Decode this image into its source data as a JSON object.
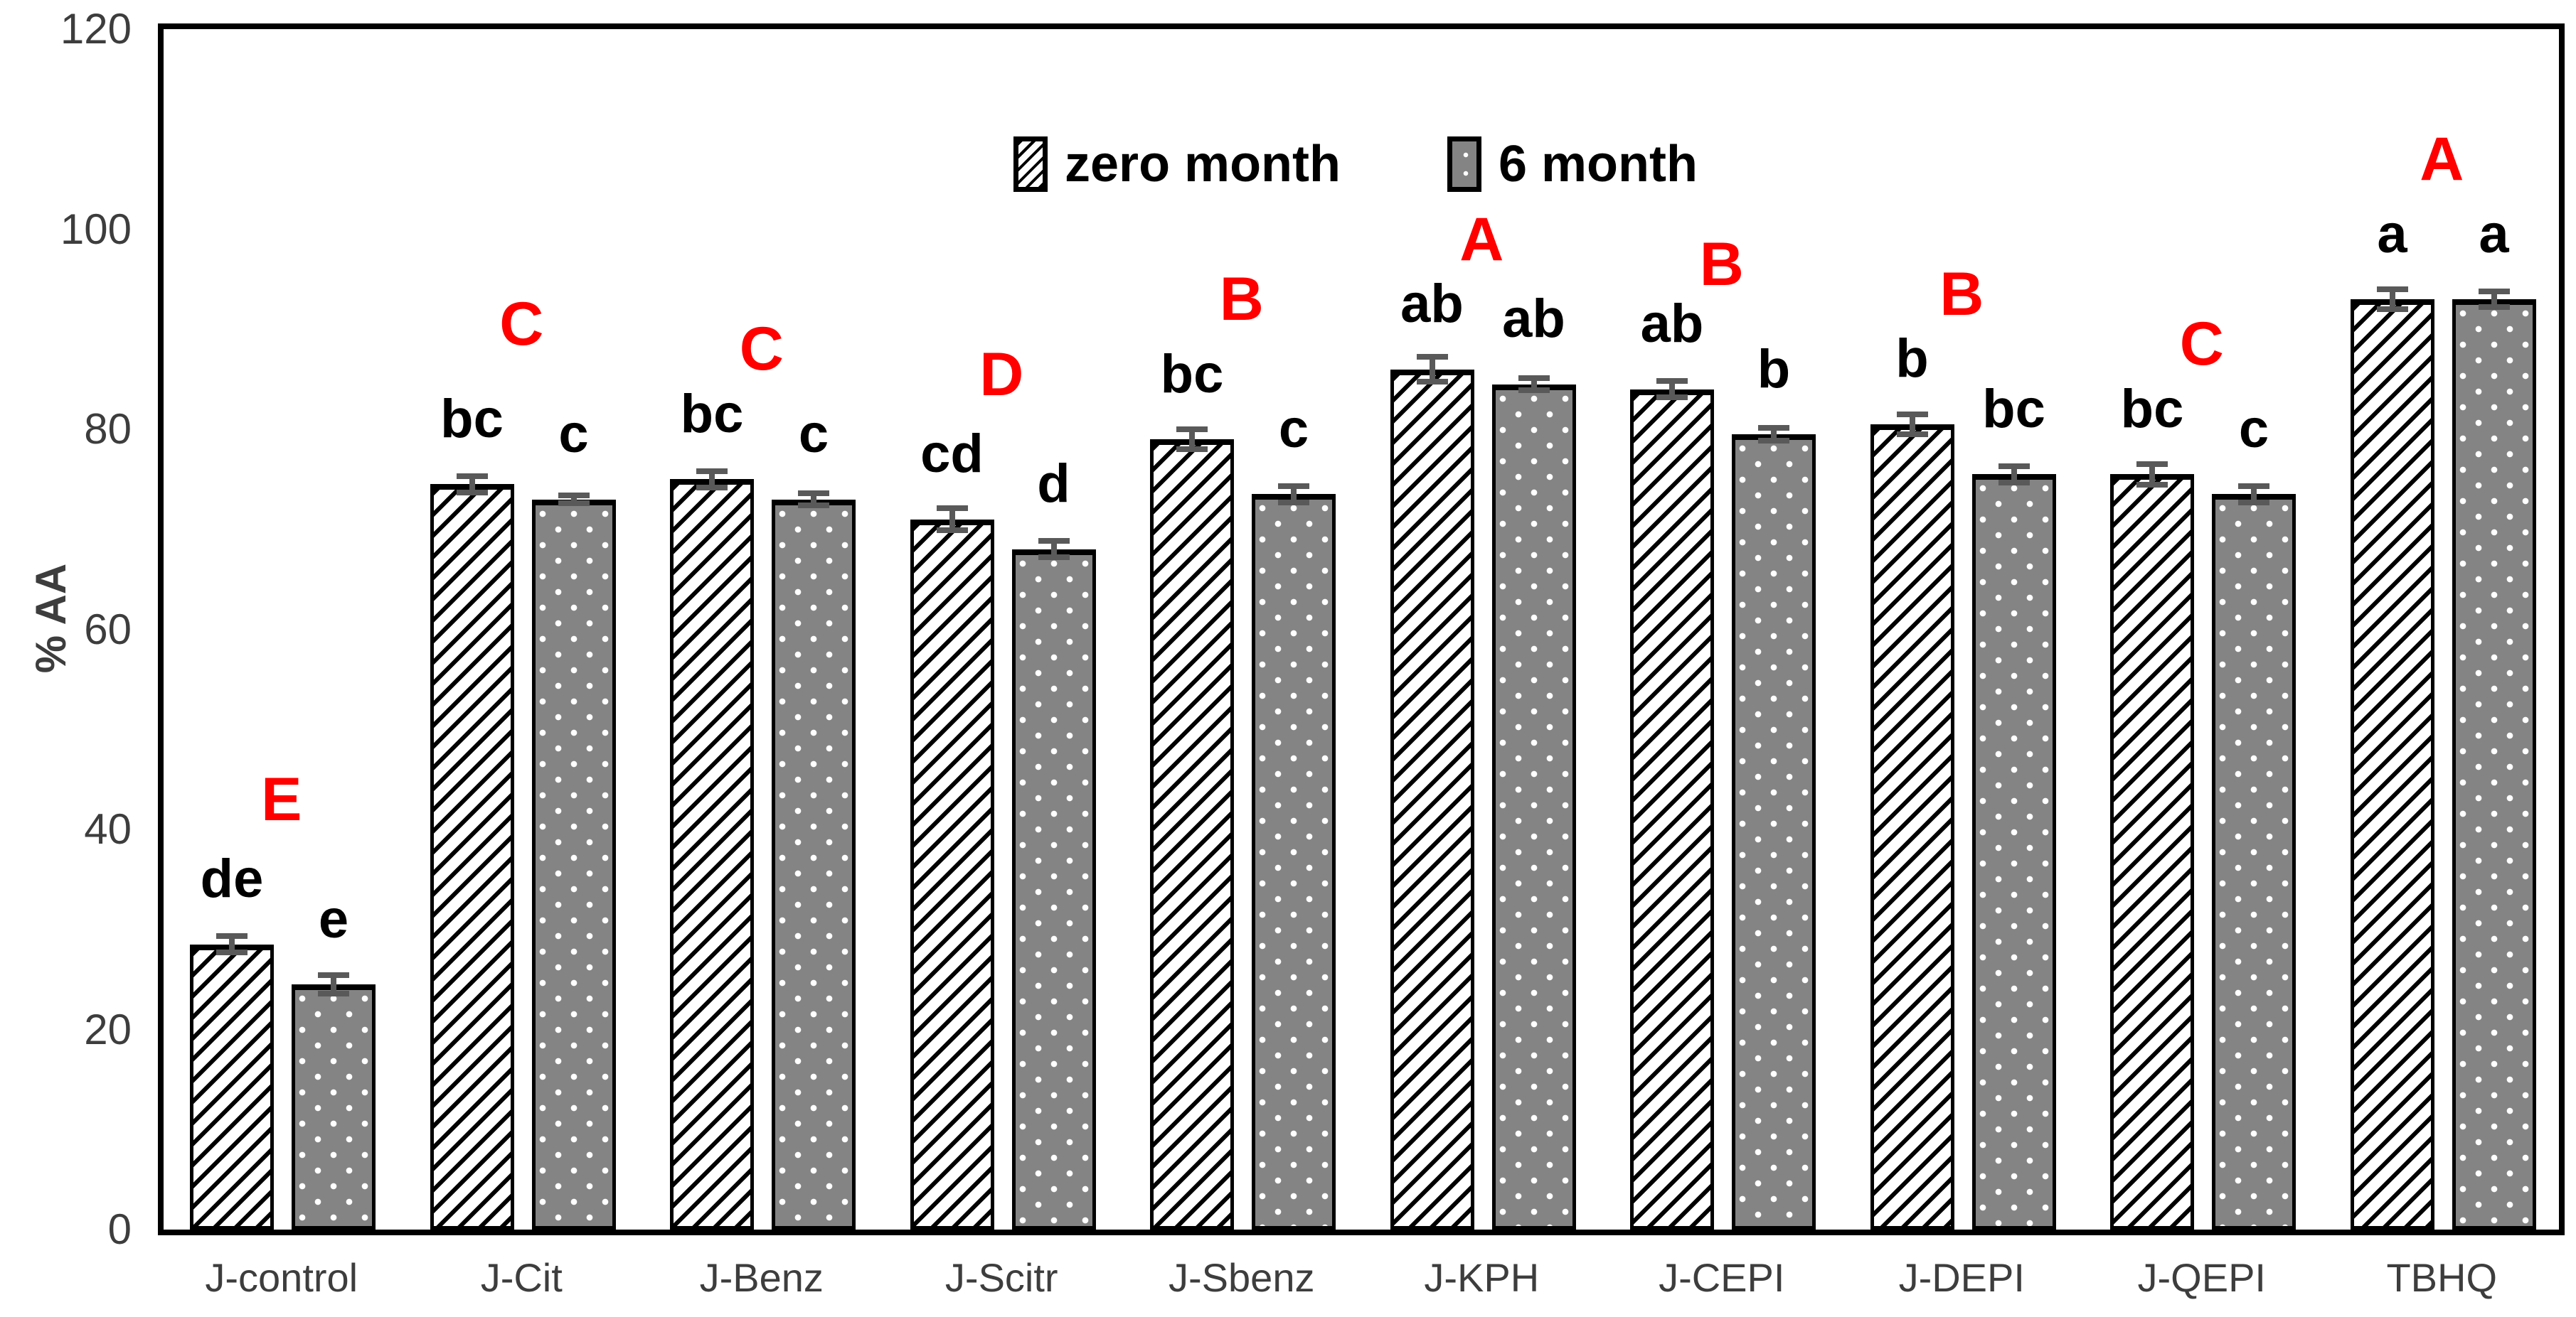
{
  "chart_data": {
    "type": "bar",
    "title": "",
    "xlabel": "",
    "ylabel": "% AA",
    "ylim": [
      0,
      120
    ],
    "yticks": [
      0,
      20,
      40,
      60,
      80,
      100,
      120
    ],
    "grid": false,
    "legend_position": "top-center",
    "categories": [
      "J-control",
      "J-Cit",
      "J-Benz",
      "J-Scitr",
      "J-Sbenz",
      "J-KPH",
      "J-CEPI",
      "J-DEPI",
      "J-QEPI",
      "TBHQ"
    ],
    "series": [
      {
        "name": "zero month",
        "pattern": "black-diagonal-hatch-on-white",
        "values": [
          28.5,
          74.5,
          75,
          71,
          79,
          86,
          84,
          80.5,
          75.5,
          93
        ],
        "errors": [
          1.1,
          1.1,
          1.1,
          1.4,
          1.3,
          1.5,
          1.1,
          1.3,
          1.3,
          1.3
        ],
        "sig_letters": [
          "de",
          "bc",
          "bc",
          "cd",
          "bc",
          "ab",
          "ab",
          "b",
          "bc",
          "a"
        ]
      },
      {
        "name": "6 month",
        "pattern": "gray-with-white-dots",
        "values": [
          24.5,
          73,
          73,
          68,
          73.5,
          84.5,
          79.5,
          75.5,
          73.5,
          93
        ],
        "errors": [
          1.2,
          0.7,
          0.9,
          1.1,
          1.1,
          0.9,
          0.9,
          1.1,
          1.1,
          1.1
        ],
        "sig_letters": [
          "e",
          "c",
          "c",
          "d",
          "c",
          "ab",
          "b",
          "bc",
          "c",
          "a"
        ]
      }
    ],
    "group_letters": [
      {
        "label": "E",
        "y": 43
      },
      {
        "label": "C",
        "y": 90.5
      },
      {
        "label": "C",
        "y": 88
      },
      {
        "label": "D",
        "y": 85.5
      },
      {
        "label": "B",
        "y": 93
      },
      {
        "label": "A",
        "y": 99
      },
      {
        "label": "B",
        "y": 96.5
      },
      {
        "label": "B",
        "y": 93.5
      },
      {
        "label": "C",
        "y": 88.5
      },
      {
        "label": "A",
        "y": 107
      }
    ],
    "colors": {
      "bar_gray_fill": "#848484",
      "bar_border": "#000000",
      "hatch_line": "#000000",
      "dot": "#ffffff",
      "error_bar": "#595959",
      "sig_letter": "#000000",
      "group_letter": "#ff0000",
      "axis_frame": "#000000",
      "tick_text": "#3d3d3d"
    }
  },
  "legend": {
    "items": [
      {
        "label": "zero month",
        "swatch": "hatch-swatch"
      },
      {
        "label": "6 month",
        "swatch": "dots-swatch"
      }
    ]
  },
  "y_axis": {
    "title": "% AA"
  }
}
